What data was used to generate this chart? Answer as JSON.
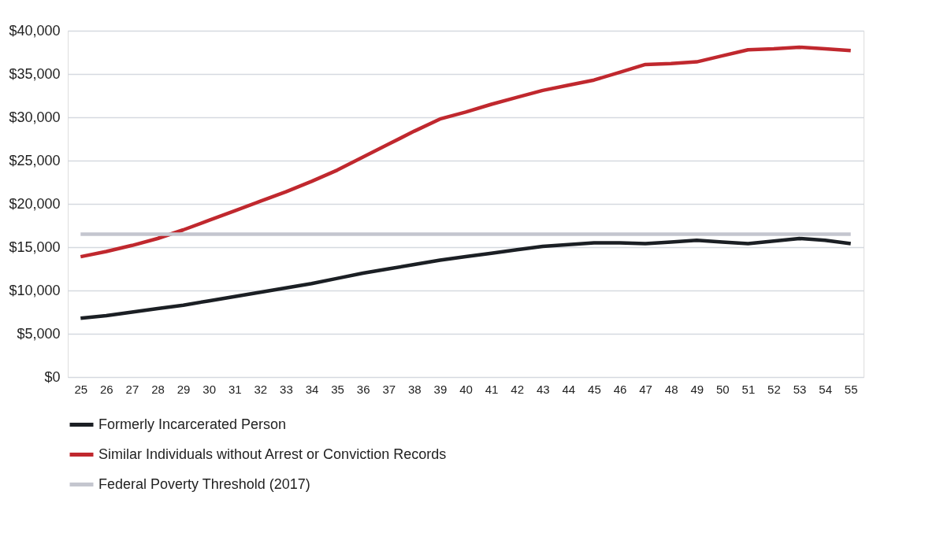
{
  "chart_data": {
    "type": "line",
    "categories": [
      "25",
      "26",
      "27",
      "28",
      "29",
      "30",
      "31",
      "32",
      "33",
      "34",
      "35",
      "36",
      "37",
      "38",
      "39",
      "40",
      "41",
      "42",
      "43",
      "44",
      "45",
      "46",
      "47",
      "48",
      "49",
      "50",
      "51",
      "52",
      "53",
      "54",
      "55"
    ],
    "series": [
      {
        "name": "Formerly Incarcerated Person",
        "color": "#1b1f24",
        "values": [
          6800,
          7100,
          7500,
          7900,
          8300,
          8800,
          9300,
          9800,
          10300,
          10800,
          11400,
          12000,
          12500,
          13000,
          13500,
          13900,
          14300,
          14700,
          15100,
          15300,
          15500,
          15500,
          15400,
          15600,
          15800,
          15600,
          15400,
          15700,
          16000,
          15800,
          15400
        ]
      },
      {
        "name": "Similar Individuals without Arrest or Conviction Records",
        "color": "#c0282e",
        "values": [
          13900,
          14500,
          15200,
          16000,
          17000,
          18100,
          19200,
          20300,
          21400,
          22600,
          23900,
          25400,
          26900,
          28400,
          29800,
          30600,
          31500,
          32300,
          33100,
          33700,
          34300,
          35200,
          36100,
          36200,
          36400,
          37100,
          37800,
          37900,
          38100,
          37900,
          37700
        ]
      },
      {
        "name": "Federal Poverty Threshold (2017)",
        "color": "#c4c6cf",
        "values": [
          16500,
          16500,
          16500,
          16500,
          16500,
          16500,
          16500,
          16500,
          16500,
          16500,
          16500,
          16500,
          16500,
          16500,
          16500,
          16500,
          16500,
          16500,
          16500,
          16500,
          16500,
          16500,
          16500,
          16500,
          16500,
          16500,
          16500,
          16500,
          16500,
          16500,
          16500
        ]
      }
    ],
    "ylim": [
      0,
      40000
    ],
    "yticks": [
      {
        "value": 0,
        "label": "$0"
      },
      {
        "value": 5000,
        "label": "$5,000"
      },
      {
        "value": 10000,
        "label": "$10,000"
      },
      {
        "value": 15000,
        "label": "$15,000"
      },
      {
        "value": 20000,
        "label": "$20,000"
      },
      {
        "value": 25000,
        "label": "$25,000"
      },
      {
        "value": 30000,
        "label": "$30,000"
      },
      {
        "value": 35000,
        "label": "$35,000"
      },
      {
        "value": 40000,
        "label": "$40,000"
      }
    ],
    "grid": "y",
    "legend": "bottom",
    "marker": "none",
    "line_style": "solid"
  }
}
